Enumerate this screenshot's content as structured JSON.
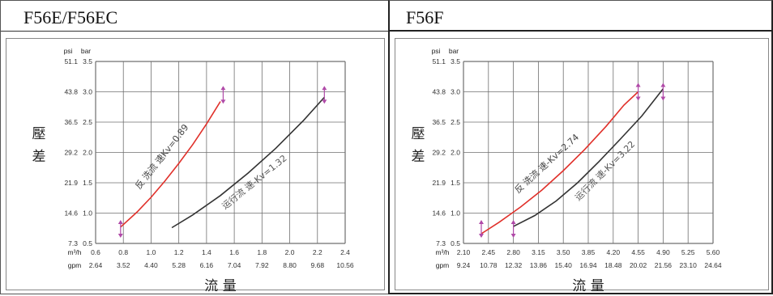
{
  "chart_data": [
    {
      "type": "line",
      "title": "F56E/F56EC",
      "ylabel": "壓差",
      "xlabel": "流 量",
      "y_units": [
        "psi",
        "bar"
      ],
      "y_ticks_bar": [
        "0.5",
        "1.0",
        "1.5",
        "2.0",
        "2.5",
        "3.0",
        "3.5"
      ],
      "y_ticks_psi": [
        "7.3",
        "14.6",
        "21.9",
        "29.2",
        "36.5",
        "43.8",
        "51.1"
      ],
      "x_unit_m3h": "m³/h",
      "x_ticks_m3h": [
        "0.6",
        "0.8",
        "1.0",
        "1.2",
        "1.4",
        "1.6",
        "1.8",
        "2.0",
        "2.2",
        "2.4"
      ],
      "x_unit_gpm": "gpm",
      "x_ticks_gpm": [
        "2.64",
        "3.52",
        "4.40",
        "5.28",
        "6.16",
        "7.04",
        "7.92",
        "8.80",
        "9.68",
        "10.56"
      ],
      "xlim": [
        0.6,
        2.4
      ],
      "ylim": [
        0.5,
        3.5
      ],
      "series": [
        {
          "name": "反 洗流 速Kv=0.89",
          "color": "#e0302a",
          "x": [
            0.78,
            0.9,
            1.0,
            1.1,
            1.2,
            1.3,
            1.4,
            1.5
          ],
          "y": [
            0.77,
            1.02,
            1.26,
            1.53,
            1.82,
            2.13,
            2.47,
            2.84
          ]
        },
        {
          "name": "运行流 速-Kv=1.32",
          "color": "#333333",
          "x": [
            1.15,
            1.3,
            1.5,
            1.7,
            1.9,
            2.1,
            2.25
          ],
          "y": [
            0.76,
            0.97,
            1.29,
            1.66,
            2.07,
            2.53,
            2.91
          ]
        }
      ],
      "markers": [
        {
          "x": 0.78,
          "y": 0.74
        },
        {
          "x": 1.52,
          "y": 2.95
        },
        {
          "x": 2.25,
          "y": 2.95
        }
      ]
    },
    {
      "type": "line",
      "title": "F56F",
      "ylabel": "壓差",
      "xlabel": "流 量",
      "y_units": [
        "psi",
        "bar"
      ],
      "y_ticks_bar": [
        "0.5",
        "1.0",
        "1.5",
        "2.0",
        "2.5",
        "3.0",
        "3.5"
      ],
      "y_ticks_psi": [
        "7.3",
        "14.6",
        "21.9",
        "29.2",
        "36.5",
        "43.8",
        "51.1"
      ],
      "x_unit_m3h": "m³/h",
      "x_ticks_m3h": [
        "2.10",
        "2.45",
        "2.80",
        "3.15",
        "3.50",
        "3.85",
        "4.20",
        "4.55",
        "4.90",
        "5.25",
        "5.60"
      ],
      "x_unit_gpm": "gpm",
      "x_ticks_gpm": [
        "9.24",
        "10.78",
        "12.32",
        "13.86",
        "15.40",
        "16.94",
        "18.48",
        "20.02",
        "21.56",
        "23.10",
        "24.64"
      ],
      "xlim": [
        2.1,
        5.6
      ],
      "ylim": [
        0.5,
        3.5
      ],
      "series": [
        {
          "name": "反 洗流 速-Kv=2.74",
          "color": "#e0302a",
          "x": [
            2.35,
            2.6,
            2.9,
            3.2,
            3.5,
            3.8,
            4.1,
            4.35,
            4.55
          ],
          "y": [
            0.66,
            0.85,
            1.1,
            1.38,
            1.7,
            2.05,
            2.43,
            2.78,
            3.0
          ]
        },
        {
          "name": "运行流 速-Kv=3.22",
          "color": "#333333",
          "x": [
            2.8,
            3.1,
            3.4,
            3.7,
            4.0,
            4.3,
            4.6,
            4.9
          ],
          "y": [
            0.78,
            0.96,
            1.2,
            1.5,
            1.85,
            2.22,
            2.6,
            3.05
          ]
        }
      ],
      "markers": [
        {
          "x": 2.35,
          "y": 0.74
        },
        {
          "x": 2.8,
          "y": 0.74
        },
        {
          "x": 4.55,
          "y": 3.0
        },
        {
          "x": 4.9,
          "y": 3.0
        }
      ]
    }
  ]
}
